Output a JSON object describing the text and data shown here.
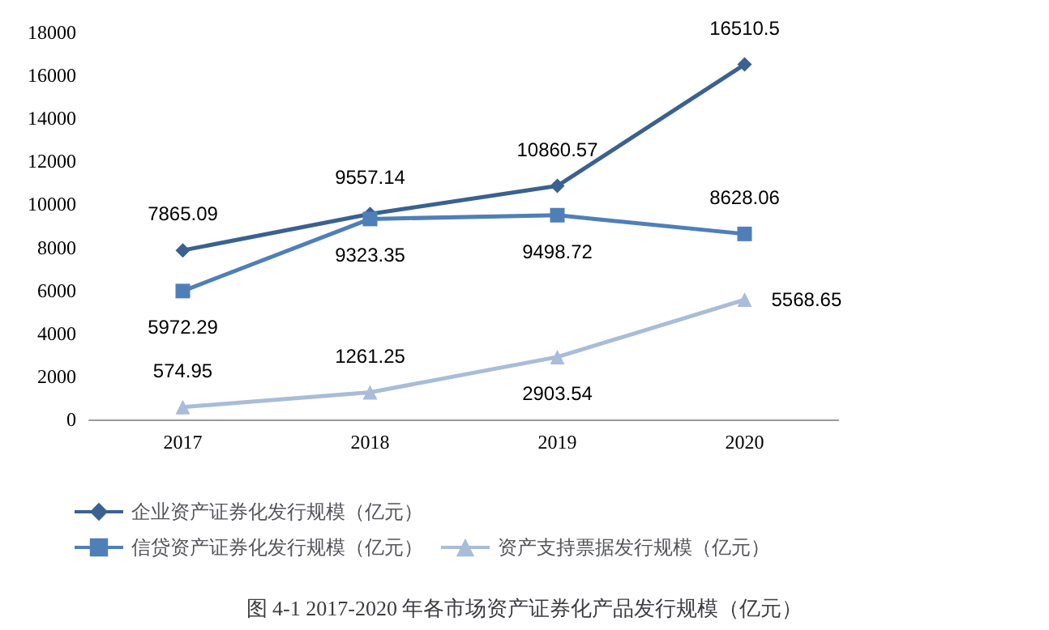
{
  "chart_data": {
    "type": "line",
    "title": "图 4-1 2017-2020 年各市场资产证券化产品发行规模（亿元）",
    "categories": [
      "2017",
      "2018",
      "2019",
      "2020"
    ],
    "series": [
      {
        "name": "企业资产证券化发行规模（亿元）",
        "color": "#3a6190",
        "marker": "diamond",
        "values": [
          7865.09,
          9557.14,
          10860.57,
          16510.5
        ]
      },
      {
        "name": "信贷资产证券化发行规模（亿元）",
        "color": "#4f7fb8",
        "marker": "square",
        "values": [
          5972.29,
          9323.35,
          9498.72,
          8628.06
        ]
      },
      {
        "name": "资产支持票据发行规模（亿元）",
        "color": "#a9bcd8",
        "marker": "triangle",
        "values": [
          574.95,
          1261.25,
          2903.54,
          5568.65
        ]
      }
    ],
    "ylim": [
      0,
      18000
    ],
    "yticks": [
      0,
      2000,
      4000,
      6000,
      8000,
      10000,
      12000,
      14000,
      16000,
      18000
    ],
    "data_labels": true,
    "legend": "bottom"
  }
}
